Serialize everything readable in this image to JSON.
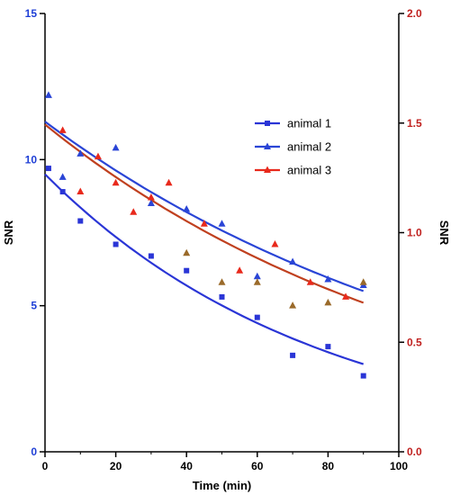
{
  "chart_data": {
    "type": "scatter",
    "title": "",
    "xlabel": "Time (min)",
    "ylabel_left": "SNR",
    "ylabel_right": "SNR",
    "xlim": [
      0,
      100
    ],
    "ylim_left": [
      0,
      15
    ],
    "ylim_right": [
      0,
      2.0
    ],
    "x_ticks": [
      "0",
      "20",
      "40",
      "60",
      "80",
      "100"
    ],
    "y_ticks_left": [
      "0",
      "5",
      "10",
      "15"
    ],
    "y_ticks_right": [
      "0.0",
      "0.5",
      "1.0",
      "1.5",
      "2.0"
    ],
    "x_tick_values": [
      0,
      20,
      40,
      60,
      80,
      100
    ],
    "y_tick_values_left": [
      0,
      5,
      10,
      15
    ],
    "y_tick_values_right": [
      0,
      0.5,
      1.0,
      1.5,
      2.0
    ],
    "colors": {
      "left_axis": "#1f3fd6",
      "right_axis": "#c0211f",
      "animal1": "#2a35d6",
      "animal2": "#2a45d6",
      "animal3": "#e8291c",
      "animal3_alt": "#9a6a2a",
      "fit3": "#c0401f"
    },
    "legend_position": "upper-right",
    "series": [
      {
        "name": "animal 1",
        "marker": "square",
        "x": [
          1,
          5,
          10,
          20,
          30,
          40,
          50,
          60,
          70,
          80,
          90
        ],
        "y": [
          9.7,
          8.9,
          7.9,
          7.1,
          6.7,
          6.2,
          5.3,
          4.6,
          3.3,
          3.6,
          2.6
        ],
        "fit": [
          9.5,
          3.0
        ]
      },
      {
        "name": "animal 2",
        "marker": "triangle",
        "x": [
          1,
          5,
          10,
          20,
          30,
          40,
          50,
          60,
          70,
          80,
          90
        ],
        "y": [
          12.2,
          9.4,
          10.2,
          10.4,
          8.5,
          8.3,
          7.8,
          6.0,
          6.5,
          5.9,
          5.7
        ],
        "fit": [
          11.3,
          5.5
        ]
      },
      {
        "name": "animal 3",
        "marker": "triangle",
        "x": [
          5,
          10,
          15,
          20,
          25,
          30,
          35,
          40,
          45,
          50,
          55,
          60,
          65,
          70,
          75,
          80,
          85,
          90
        ],
        "y": [
          11.0,
          8.9,
          10.1,
          9.2,
          8.2,
          8.7,
          9.2,
          6.8,
          7.8,
          5.8,
          6.2,
          5.8,
          7.1,
          5.0,
          5.8,
          5.1,
          5.3,
          5.8
        ],
        "alt_color_index": [
          7,
          9,
          11,
          13,
          15,
          17
        ],
        "fit": [
          11.2,
          5.1
        ]
      }
    ]
  }
}
